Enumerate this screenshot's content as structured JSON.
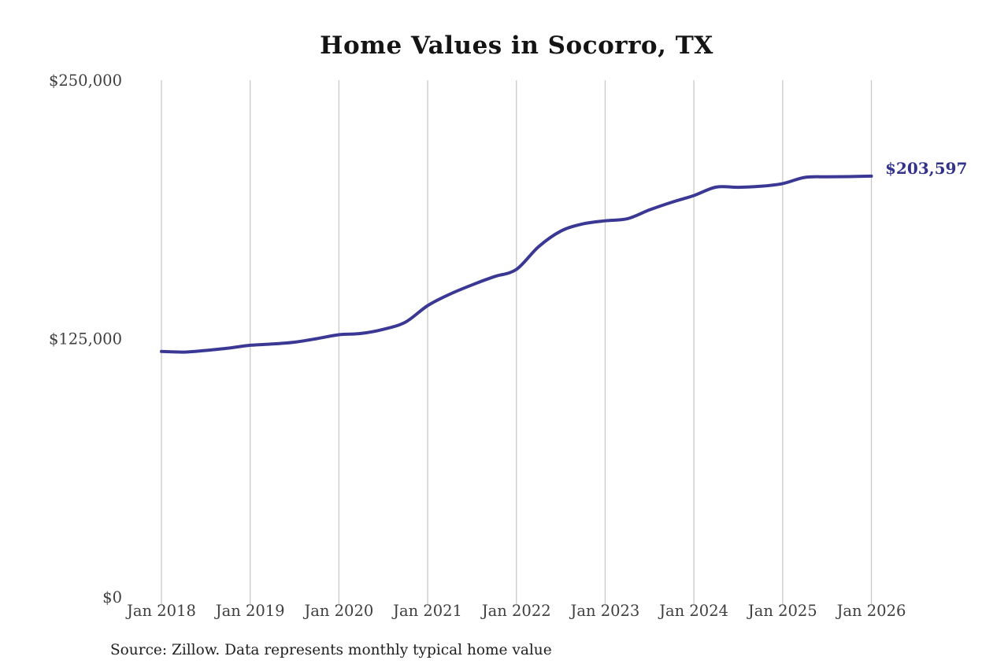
{
  "page": {
    "background_color": "#ffffff"
  },
  "chart": {
    "title": "Home Values in Socorro, TX",
    "end_label": "$203,597",
    "source_note": "Source: Zillow. Data represents monthly typical home value"
  },
  "chart_data": {
    "type": "line",
    "title": "Home Values in Socorro, TX",
    "xlabel": "",
    "ylabel": "",
    "ylim": [
      0,
      250000
    ],
    "xlim": [
      2018,
      2026
    ],
    "grid": "vertical-only",
    "legend": "none",
    "gridline_color": "#c9c9c9",
    "axis_text_color": "#3f3f3f",
    "y_ticks": [
      0,
      125000,
      250000
    ],
    "y_tick_labels": [
      "$0",
      "$125,000",
      "$250,000"
    ],
    "x_ticks": [
      2018,
      2019,
      2020,
      2021,
      2022,
      2023,
      2024,
      2025,
      2026
    ],
    "x_tick_labels": [
      "Jan 2018",
      "Jan 2019",
      "Jan 2020",
      "Jan 2021",
      "Jan 2022",
      "Jan 2023",
      "Jan 2024",
      "Jan 2025",
      "Jan 2026"
    ],
    "end_annotation": {
      "text": "$203,597",
      "value": 203597,
      "color": "#32328c"
    },
    "series": [
      {
        "name": "Monthly typical home value",
        "color": "#3a3894",
        "stroke_width": 4,
        "x": [
          2018.0,
          2018.25,
          2018.5,
          2018.75,
          2019.0,
          2019.25,
          2019.5,
          2019.75,
          2020.0,
          2020.25,
          2020.5,
          2020.75,
          2021.0,
          2021.25,
          2021.5,
          2021.75,
          2022.0,
          2022.25,
          2022.5,
          2022.75,
          2023.0,
          2023.25,
          2023.5,
          2023.75,
          2024.0,
          2024.25,
          2024.5,
          2024.75,
          2025.0,
          2025.25,
          2025.5,
          2025.75,
          2026.0
        ],
        "x_labels": [
          "Jan 2018",
          "Apr 2018",
          "Jul 2018",
          "Oct 2018",
          "Jan 2019",
          "Apr 2019",
          "Jul 2019",
          "Oct 2019",
          "Jan 2020",
          "Apr 2020",
          "Jul 2020",
          "Oct 2020",
          "Jan 2021",
          "Apr 2021",
          "Jul 2021",
          "Oct 2021",
          "Jan 2022",
          "Apr 2022",
          "Jul 2022",
          "Oct 2022",
          "Jan 2023",
          "Apr 2023",
          "Jul 2023",
          "Oct 2023",
          "Jan 2024",
          "Apr 2024",
          "Jul 2024",
          "Oct 2024",
          "Jan 2025",
          "Apr 2025",
          "Jul 2025",
          "Oct 2025",
          "Jan 2026"
        ],
        "values": [
          118800,
          118500,
          119300,
          120400,
          121800,
          122400,
          123300,
          125000,
          126900,
          127500,
          129500,
          133000,
          141000,
          146500,
          151000,
          155000,
          158500,
          169500,
          177000,
          180500,
          182000,
          183000,
          187300,
          191000,
          194200,
          198300,
          198200,
          198700,
          200000,
          203000,
          203300,
          203400,
          203597
        ]
      }
    ]
  }
}
